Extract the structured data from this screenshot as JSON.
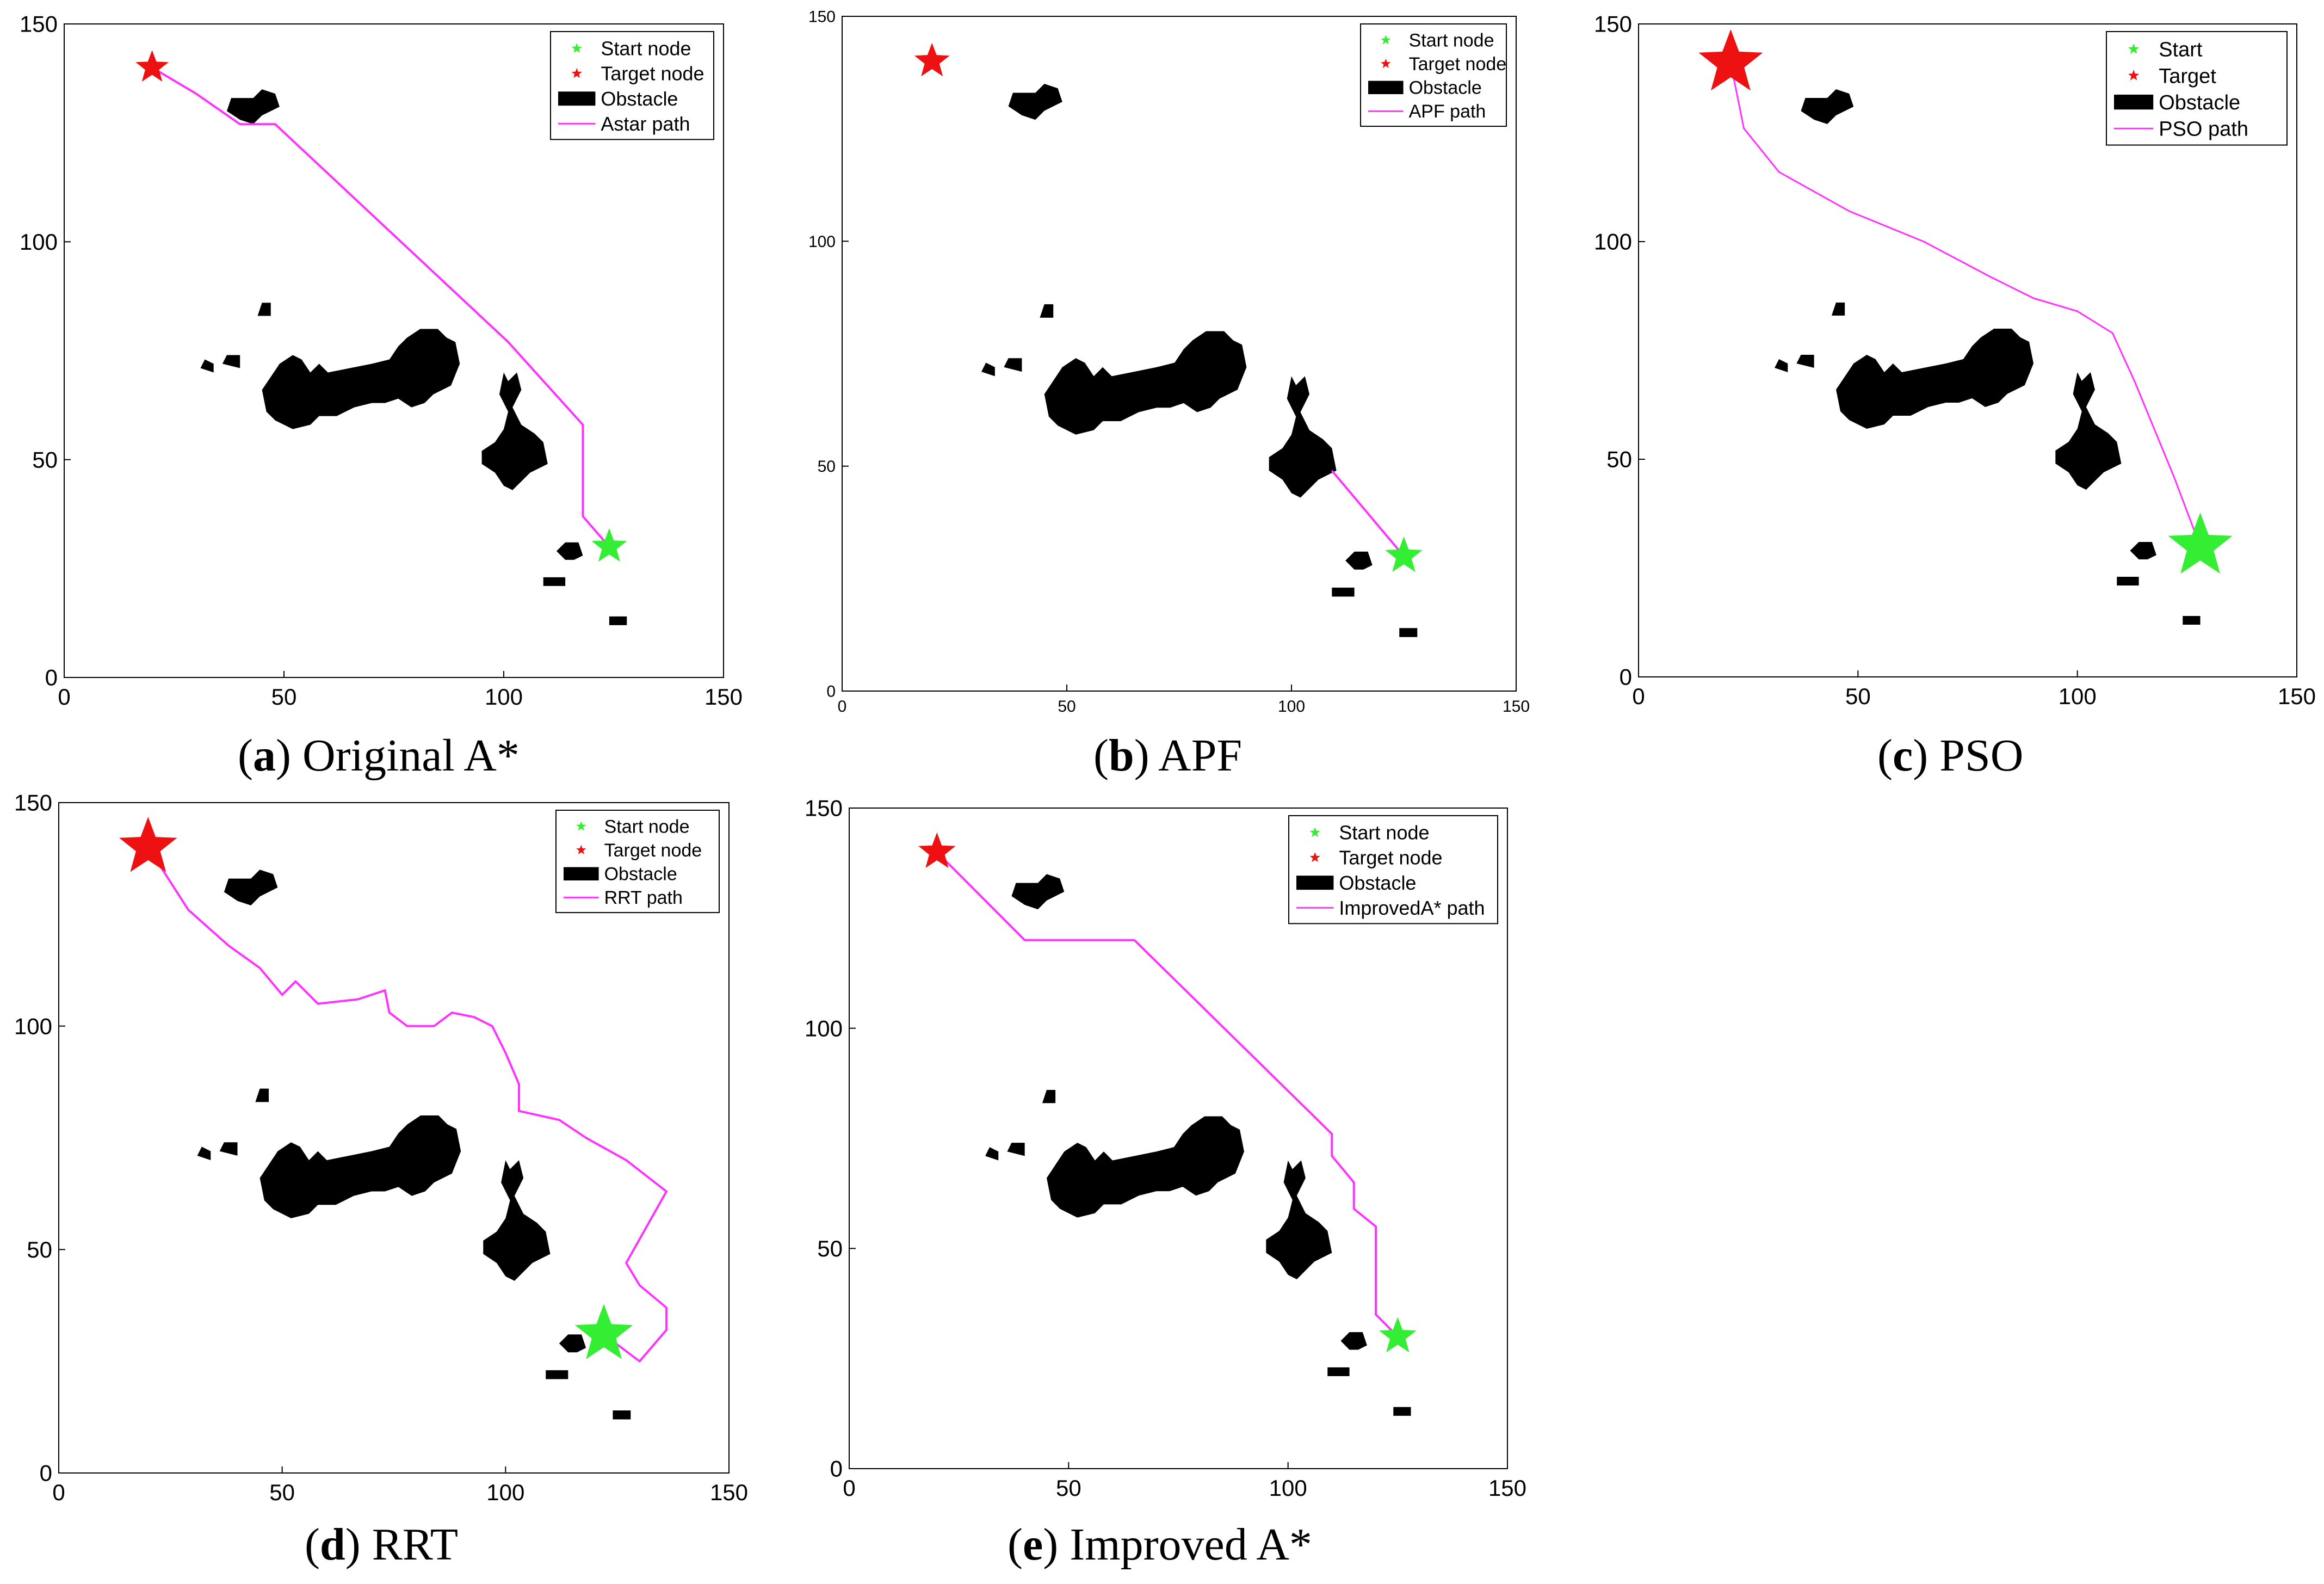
{
  "figure": {
    "captions": [
      {
        "letter": "a",
        "text": "Original A*"
      },
      {
        "letter": "b",
        "text": "APF"
      },
      {
        "letter": "c",
        "text": "PSO"
      },
      {
        "letter": "d",
        "text": "RRT"
      },
      {
        "letter": "e",
        "text": "Improved A*"
      }
    ]
  },
  "colors": {
    "start": "#33ee33",
    "target": "#ee1111",
    "obstacle": "#000000",
    "path": "#ff33ff",
    "axis": "#000000"
  },
  "chart_data": [
    {
      "type": "scatter",
      "panel": "a",
      "xlim": [
        0,
        150
      ],
      "ylim": [
        0,
        150
      ],
      "xticks": [
        0,
        50,
        100,
        150
      ],
      "yticks": [
        0,
        50,
        100,
        150
      ],
      "grid": false,
      "legend_position": "top-right",
      "legend": [
        "Start node",
        "Target node",
        "Obstacle",
        "Astar path"
      ],
      "start": [
        124,
        30
      ],
      "target": [
        20,
        140
      ],
      "path": [
        [
          124,
          30
        ],
        [
          118,
          37
        ],
        [
          118,
          58
        ],
        [
          101,
          77
        ],
        [
          48,
          127
        ],
        [
          40,
          127
        ],
        [
          30,
          134
        ],
        [
          20,
          140
        ]
      ]
    },
    {
      "type": "scatter",
      "panel": "b",
      "xlim": [
        0,
        150
      ],
      "ylim": [
        0,
        150
      ],
      "xticks": [
        0,
        50,
        100,
        150
      ],
      "yticks": [
        0,
        50,
        100,
        150
      ],
      "grid": false,
      "legend_position": "top-right",
      "legend": [
        "Start node",
        "Target node",
        "Obstacle",
        "APF path"
      ],
      "start": [
        125,
        30
      ],
      "target": [
        20,
        140
      ],
      "path": [
        [
          125,
          30
        ],
        [
          109,
          49
        ]
      ]
    },
    {
      "type": "scatter",
      "panel": "c",
      "xlim": [
        0,
        150
      ],
      "ylim": [
        0,
        150
      ],
      "xticks": [
        0,
        50,
        100,
        150
      ],
      "yticks": [
        0,
        50,
        100,
        150
      ],
      "grid": false,
      "legend_position": "top-right",
      "legend": [
        "Start",
        "Target",
        "Obstacle",
        "PSO path"
      ],
      "start": [
        128,
        30
      ],
      "target": [
        21,
        141
      ],
      "path": [
        [
          128,
          30
        ],
        [
          122,
          46
        ],
        [
          113,
          68
        ],
        [
          108,
          79
        ],
        [
          100,
          84
        ],
        [
          90,
          87
        ],
        [
          80,
          92
        ],
        [
          65,
          100
        ],
        [
          48,
          107
        ],
        [
          32,
          116
        ],
        [
          24,
          126
        ],
        [
          21,
          141
        ]
      ]
    },
    {
      "type": "scatter",
      "panel": "d",
      "xlim": [
        0,
        150
      ],
      "ylim": [
        0,
        150
      ],
      "xticks": [
        0,
        50,
        100,
        150
      ],
      "yticks": [
        0,
        50,
        100,
        150
      ],
      "grid": false,
      "legend_position": "top-right",
      "legend": [
        "Start node",
        "Target node",
        "Obstacle",
        "RRT path"
      ],
      "start": [
        122,
        31
      ],
      "target": [
        20,
        140
      ],
      "path": [
        [
          122,
          31
        ],
        [
          130,
          25
        ],
        [
          136,
          32
        ],
        [
          136,
          37
        ],
        [
          130,
          42
        ],
        [
          127,
          47
        ],
        [
          136,
          63
        ],
        [
          127,
          70
        ],
        [
          118,
          75
        ],
        [
          112,
          79
        ],
        [
          103,
          81
        ],
        [
          103,
          87
        ],
        [
          100,
          94
        ],
        [
          97,
          100
        ],
        [
          93,
          102
        ],
        [
          88,
          103
        ],
        [
          84,
          100
        ],
        [
          78,
          100
        ],
        [
          74,
          103
        ],
        [
          73,
          108
        ],
        [
          67,
          106
        ],
        [
          58,
          105
        ],
        [
          53,
          110
        ],
        [
          50,
          107
        ],
        [
          45,
          113
        ],
        [
          38,
          118
        ],
        [
          29,
          126
        ],
        [
          20,
          140
        ]
      ]
    },
    {
      "type": "scatter",
      "panel": "e",
      "xlim": [
        0,
        150
      ],
      "ylim": [
        0,
        150
      ],
      "xticks": [
        0,
        50,
        100,
        150
      ],
      "yticks": [
        0,
        50,
        100,
        150
      ],
      "grid": false,
      "legend_position": "top-right",
      "legend": [
        "Start node",
        "Target node",
        "Obstacle",
        "ImprovedA* path"
      ],
      "start": [
        125,
        30
      ],
      "target": [
        20,
        140
      ],
      "path": [
        [
          125,
          30
        ],
        [
          120,
          35
        ],
        [
          120,
          55
        ],
        [
          115,
          59
        ],
        [
          115,
          65
        ],
        [
          110,
          71
        ],
        [
          110,
          76
        ],
        [
          65,
          120
        ],
        [
          40,
          120
        ],
        [
          20,
          140
        ]
      ]
    }
  ]
}
